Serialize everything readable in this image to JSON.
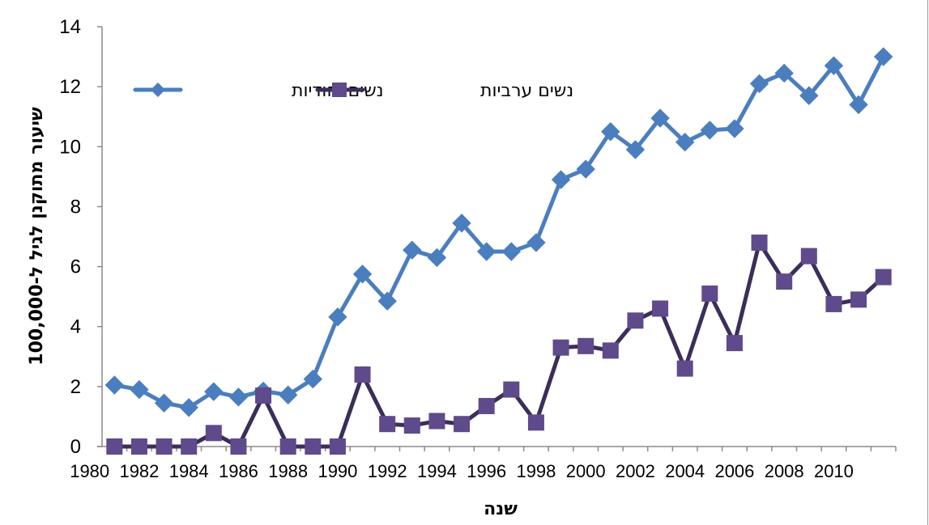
{
  "chart_data": {
    "type": "line",
    "title": "",
    "xlabel": "שנה",
    "ylabel": "שיעור מתוקנן לגיל ל-100,000",
    "ylim": [
      0,
      14
    ],
    "yticks": [
      0,
      2,
      4,
      6,
      8,
      10,
      12,
      14
    ],
    "x_tick_labels": [
      "1980",
      "1982",
      "1984",
      "1986",
      "1988",
      "1990",
      "1992",
      "1994",
      "1996",
      "1998",
      "2000",
      "2002",
      "2004",
      "2006",
      "2008",
      "2010"
    ],
    "x": [
      1981,
      1982,
      1983,
      1984,
      1985,
      1986,
      1987,
      1988,
      1989,
      1990,
      1991,
      1992,
      1993,
      1994,
      1995,
      1996,
      1997,
      1998,
      1999,
      2000,
      2001,
      2002,
      2003,
      2004,
      2005,
      2006,
      2007,
      2008,
      2009,
      2010,
      2011,
      2012
    ],
    "grid": false,
    "legend_position": "top-left",
    "series": [
      {
        "name": "נשים יהודיות",
        "color": "#4a7ebf",
        "marker": "diamond",
        "values": [
          2.05,
          1.9,
          1.45,
          1.3,
          1.83,
          1.65,
          1.85,
          1.72,
          2.25,
          4.32,
          5.75,
          4.85,
          6.55,
          6.3,
          7.45,
          6.5,
          6.5,
          6.8,
          8.9,
          9.25,
          10.5,
          9.9,
          10.95,
          10.15,
          10.55,
          10.6,
          12.1,
          12.45,
          11.7,
          12.7,
          11.4,
          13.0
        ]
      },
      {
        "name": "נשים ערביות",
        "color": "#5f4a8b",
        "line_color": "#3b2e5a",
        "marker": "square",
        "values": [
          0,
          0,
          0,
          0,
          0.45,
          0,
          1.7,
          0,
          0,
          0,
          2.4,
          0.75,
          0.7,
          0.85,
          0.75,
          1.35,
          1.9,
          0.8,
          3.3,
          3.35,
          3.2,
          4.2,
          4.6,
          2.6,
          5.1,
          3.45,
          6.8,
          5.5,
          6.35,
          4.75,
          4.9,
          5.65
        ]
      }
    ]
  }
}
